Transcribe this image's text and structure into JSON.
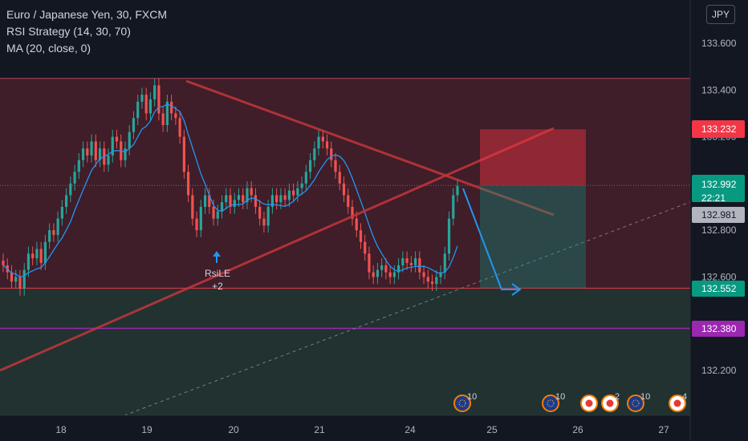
{
  "legend": {
    "symbol": "Euro / Japanese Yen, 30, FXCM",
    "strategy": "RSI Strategy (14, 30, 70)",
    "ma": "MA (20, close, 0)"
  },
  "currency_button": "JPY",
  "chart_data": {
    "type": "candlestick",
    "symbol": "EURJPY",
    "timeframe": "30",
    "x_ticks": [
      "18",
      "19",
      "20",
      "21",
      "24",
      "25",
      "26",
      "27"
    ],
    "y_ticks": [
      "133.600",
      "133.400",
      "133.200",
      "132.800",
      "132.600",
      "132.200"
    ],
    "ylim": [
      132.0,
      133.8
    ],
    "price_labels": [
      {
        "id": "stop",
        "text": "133.232",
        "value": 133.232,
        "color": "#f23645"
      },
      {
        "id": "last",
        "text": "132.992",
        "value": 132.992,
        "color": "#089981"
      },
      {
        "id": "countdown",
        "text": "22:21",
        "value": 132.992,
        "color": "#089981"
      },
      {
        "id": "ma-value",
        "text": "132.981",
        "value": 132.981,
        "color": "#b2b5be"
      },
      {
        "id": "target",
        "text": "132.552",
        "value": 132.552,
        "color": "#089981"
      },
      {
        "id": "support",
        "text": "132.380",
        "value": 132.38,
        "color": "#9c27b0"
      }
    ],
    "resistance_zone": [
      132.552,
      133.45
    ],
    "support_zone": [
      132.552,
      132.43
    ],
    "horizontal_line": 132.38,
    "short_position": {
      "entry": 132.992,
      "stop": 133.232,
      "target": 132.552
    },
    "signal": {
      "label": "RsiLE",
      "sublabel": "+2"
    },
    "events": [
      {
        "label": "10"
      },
      {
        "label": "10"
      },
      {
        "label": "2"
      },
      {
        "label": "10"
      },
      {
        "label": "4"
      }
    ],
    "close_series": [
      132.65,
      132.62,
      132.58,
      132.6,
      132.55,
      132.63,
      132.7,
      132.68,
      132.72,
      132.66,
      132.75,
      132.8,
      132.78,
      132.85,
      132.9,
      132.95,
      133.0,
      133.05,
      133.1,
      133.15,
      133.12,
      133.18,
      133.1,
      133.15,
      133.08,
      133.12,
      133.2,
      133.18,
      133.1,
      133.15,
      133.22,
      133.28,
      133.35,
      133.38,
      133.3,
      133.36,
      133.42,
      133.3,
      133.25,
      133.35,
      133.3,
      133.28,
      133.2,
      133.05,
      132.95,
      132.85,
      132.8,
      132.9,
      132.95,
      132.9,
      132.85,
      132.88,
      132.92,
      132.95,
      132.9,
      132.93,
      132.95,
      132.92,
      132.98,
      132.95,
      132.9,
      132.85,
      132.82,
      132.9,
      132.95,
      132.92,
      132.95,
      132.93,
      132.97,
      132.95,
      132.98,
      133.0,
      133.05,
      133.1,
      133.15,
      133.2,
      133.18,
      133.15,
      133.1,
      133.05,
      133.0,
      132.95,
      132.9,
      132.85,
      132.8,
      132.75,
      132.7,
      132.62,
      132.6,
      132.63,
      132.65,
      132.62,
      132.6,
      132.62,
      132.65,
      132.68,
      132.66,
      132.65,
      132.68,
      132.62,
      132.6,
      132.58,
      132.57,
      132.6,
      132.62,
      132.7,
      132.85,
      132.95,
      132.99
    ]
  }
}
